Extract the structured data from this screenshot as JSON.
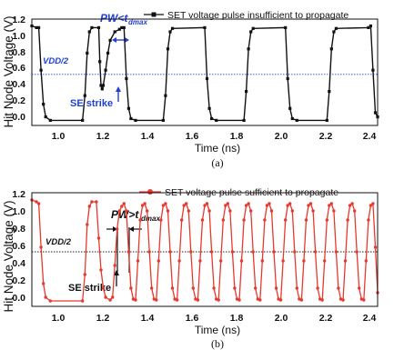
{
  "chart_data": [
    {
      "type": "line",
      "caption": "(a)",
      "xlabel": "Time (ns)",
      "ylabel": "Hit Node Voltage (V)",
      "xlim": [
        1.0,
        2.5
      ],
      "ylim": [
        -0.05,
        1.2
      ],
      "xticks": [
        "1.0",
        "1.2",
        "1.4",
        "1.6",
        "1.8",
        "2.0",
        "2.2",
        "2.4"
      ],
      "yticks": [
        "0.0",
        "0.2",
        "0.4",
        "0.6",
        "0.8",
        "1.0",
        "1.2"
      ],
      "series": [
        {
          "name": "SET voltage pulse insufficient to propagate",
          "color": "#111111",
          "marker": "square",
          "points": [
            [
              0.98,
              1.12
            ],
            [
              1.0,
              1.12
            ],
            [
              1.02,
              1.1
            ],
            [
              1.03,
              1.1
            ],
            [
              1.04,
              0.6
            ],
            [
              1.05,
              0.2
            ],
            [
              1.06,
              0.05
            ],
            [
              1.08,
              0.01
            ],
            [
              1.22,
              0.01
            ],
            [
              1.23,
              0.3
            ],
            [
              1.24,
              0.8
            ],
            [
              1.25,
              1.05
            ],
            [
              1.26,
              1.1
            ],
            [
              1.29,
              1.1
            ],
            [
              1.295,
              0.7
            ],
            [
              1.3,
              0.42
            ],
            [
              1.305,
              0.38
            ],
            [
              1.31,
              0.42
            ],
            [
              1.32,
              0.6
            ],
            [
              1.33,
              0.8
            ],
            [
              1.34,
              0.95
            ],
            [
              1.36,
              1.05
            ],
            [
              1.38,
              1.08
            ],
            [
              1.39,
              1.1
            ],
            [
              1.4,
              1.1
            ],
            [
              1.41,
              0.5
            ],
            [
              1.42,
              0.15
            ],
            [
              1.43,
              0.03
            ],
            [
              1.45,
              0.01
            ],
            [
              1.57,
              0.01
            ],
            [
              1.58,
              0.3
            ],
            [
              1.59,
              0.85
            ],
            [
              1.6,
              1.05
            ],
            [
              1.61,
              1.09
            ],
            [
              1.75,
              1.1
            ],
            [
              1.76,
              0.5
            ],
            [
              1.77,
              0.15
            ],
            [
              1.78,
              0.03
            ],
            [
              1.8,
              0.01
            ],
            [
              1.92,
              0.01
            ],
            [
              1.93,
              0.35
            ],
            [
              1.94,
              0.85
            ],
            [
              1.95,
              1.05
            ],
            [
              1.96,
              1.09
            ],
            [
              2.1,
              1.1
            ],
            [
              2.11,
              0.5
            ],
            [
              2.12,
              0.15
            ],
            [
              2.13,
              0.03
            ],
            [
              2.15,
              0.01
            ],
            [
              2.28,
              0.01
            ],
            [
              2.29,
              0.35
            ],
            [
              2.3,
              0.85
            ],
            [
              2.31,
              1.05
            ],
            [
              2.32,
              1.09
            ],
            [
              2.46,
              1.1
            ],
            [
              2.47,
              1.12
            ],
            [
              2.48,
              0.6
            ],
            [
              2.49,
              0.1
            ],
            [
              2.5,
              0.05
            ]
          ]
        }
      ],
      "reference_line": {
        "label": "VDD/2",
        "y": 0.55
      },
      "annotations": {
        "pulse_width": "PW<t",
        "subscript": "dmax",
        "strike": "SE strike"
      }
    },
    {
      "type": "line",
      "caption": "(b)",
      "xlabel": "Time (ns)",
      "ylabel": "Hit Node Voltage (V)",
      "xlim": [
        1.0,
        2.5
      ],
      "ylim": [
        -0.05,
        1.2
      ],
      "xticks": [
        "1.0",
        "1.2",
        "1.4",
        "1.6",
        "1.8",
        "2.0",
        "2.2",
        "2.4"
      ],
      "yticks": [
        "0.0",
        "0.2",
        "0.4",
        "0.6",
        "0.8",
        "1.0",
        "1.2"
      ],
      "series": [
        {
          "name": "SET voltage pulse sufficient to propagate",
          "color": "#e8392f",
          "marker": "circle",
          "points": [
            [
              0.98,
              1.12
            ],
            [
              1.0,
              1.12
            ],
            [
              1.02,
              1.1
            ],
            [
              1.03,
              1.08
            ],
            [
              1.04,
              0.6
            ],
            [
              1.05,
              0.2
            ],
            [
              1.06,
              0.05
            ],
            [
              1.08,
              0.01
            ],
            [
              1.22,
              0.01
            ],
            [
              1.23,
              0.3
            ],
            [
              1.24,
              0.85
            ],
            [
              1.25,
              1.05
            ],
            [
              1.26,
              1.1
            ],
            [
              1.28,
              1.1
            ],
            [
              1.29,
              0.7
            ],
            [
              1.3,
              0.35
            ],
            [
              1.31,
              0.15
            ],
            [
              1.32,
              0.05
            ],
            [
              1.34,
              0.02
            ],
            [
              1.35,
              0.05
            ],
            [
              1.36,
              0.4
            ],
            [
              1.37,
              0.8
            ],
            [
              1.38,
              1.0
            ],
            [
              1.39,
              1.05
            ],
            [
              1.4,
              1.08
            ],
            [
              1.41,
              1.0
            ],
            [
              1.42,
              0.55
            ],
            [
              1.43,
              0.15
            ],
            [
              1.44,
              0.03
            ],
            [
              1.45,
              0.02
            ],
            [
              1.46,
              0.45
            ],
            [
              1.47,
              0.9
            ],
            [
              1.48,
              1.06
            ],
            [
              1.49,
              1.08
            ],
            [
              1.5,
              1.0
            ],
            [
              1.51,
              0.55
            ],
            [
              1.52,
              0.15
            ],
            [
              1.53,
              0.03
            ],
            [
              1.54,
              0.02
            ],
            [
              1.55,
              0.45
            ],
            [
              1.56,
              0.9
            ],
            [
              1.57,
              1.06
            ],
            [
              1.58,
              1.08
            ],
            [
              1.59,
              1.0
            ],
            [
              1.6,
              0.55
            ],
            [
              1.61,
              0.15
            ],
            [
              1.62,
              0.03
            ],
            [
              1.63,
              0.02
            ],
            [
              1.64,
              0.45
            ],
            [
              1.65,
              0.9
            ],
            [
              1.66,
              1.06
            ],
            [
              1.67,
              1.08
            ],
            [
              1.68,
              1.0
            ],
            [
              1.69,
              0.55
            ],
            [
              1.7,
              0.15
            ],
            [
              1.71,
              0.03
            ],
            [
              1.72,
              0.02
            ],
            [
              1.73,
              0.45
            ],
            [
              1.74,
              0.9
            ],
            [
              1.75,
              1.06
            ],
            [
              1.76,
              1.08
            ],
            [
              1.77,
              1.0
            ],
            [
              1.78,
              0.55
            ],
            [
              1.79,
              0.15
            ],
            [
              1.8,
              0.03
            ],
            [
              1.81,
              0.02
            ],
            [
              1.82,
              0.45
            ],
            [
              1.83,
              0.9
            ],
            [
              1.84,
              1.06
            ],
            [
              1.85,
              1.08
            ],
            [
              1.86,
              1.0
            ],
            [
              1.87,
              0.55
            ],
            [
              1.88,
              0.15
            ],
            [
              1.89,
              0.03
            ],
            [
              1.9,
              0.02
            ],
            [
              1.91,
              0.45
            ],
            [
              1.92,
              0.9
            ],
            [
              1.93,
              1.06
            ],
            [
              1.94,
              1.08
            ],
            [
              1.95,
              1.0
            ],
            [
              1.96,
              0.55
            ],
            [
              1.97,
              0.15
            ],
            [
              1.98,
              0.03
            ],
            [
              1.99,
              0.02
            ],
            [
              2.0,
              0.45
            ],
            [
              2.01,
              0.9
            ],
            [
              2.02,
              1.06
            ],
            [
              2.03,
              1.08
            ],
            [
              2.04,
              1.0
            ],
            [
              2.05,
              0.55
            ],
            [
              2.06,
              0.15
            ],
            [
              2.07,
              0.03
            ],
            [
              2.08,
              0.02
            ],
            [
              2.09,
              0.45
            ],
            [
              2.1,
              0.9
            ],
            [
              2.11,
              1.06
            ],
            [
              2.12,
              1.08
            ],
            [
              2.13,
              1.0
            ],
            [
              2.14,
              0.55
            ],
            [
              2.15,
              0.15
            ],
            [
              2.16,
              0.03
            ],
            [
              2.17,
              0.02
            ],
            [
              2.18,
              0.45
            ],
            [
              2.19,
              0.9
            ],
            [
              2.2,
              1.06
            ],
            [
              2.21,
              1.08
            ],
            [
              2.22,
              1.0
            ],
            [
              2.23,
              0.55
            ],
            [
              2.24,
              0.15
            ],
            [
              2.25,
              0.03
            ],
            [
              2.26,
              0.02
            ],
            [
              2.27,
              0.45
            ],
            [
              2.28,
              0.9
            ],
            [
              2.29,
              1.06
            ],
            [
              2.3,
              1.08
            ],
            [
              2.31,
              1.0
            ],
            [
              2.32,
              0.55
            ],
            [
              2.33,
              0.15
            ],
            [
              2.34,
              0.03
            ],
            [
              2.35,
              0.02
            ],
            [
              2.36,
              0.45
            ],
            [
              2.37,
              0.9
            ],
            [
              2.38,
              1.06
            ],
            [
              2.39,
              1.08
            ],
            [
              2.4,
              1.0
            ],
            [
              2.41,
              0.55
            ],
            [
              2.42,
              0.15
            ],
            [
              2.43,
              0.03
            ],
            [
              2.44,
              0.02
            ],
            [
              2.45,
              0.45
            ],
            [
              2.46,
              0.9
            ],
            [
              2.47,
              1.06
            ],
            [
              2.48,
              1.08
            ],
            [
              2.49,
              0.6
            ],
            [
              2.5,
              0.1
            ]
          ]
        }
      ],
      "reference_line": {
        "label": "VDD/2",
        "y": 0.55
      },
      "annotations": {
        "pulse_width": "PW>t",
        "subscript": "dmax",
        "strike": "SE strike"
      }
    }
  ]
}
